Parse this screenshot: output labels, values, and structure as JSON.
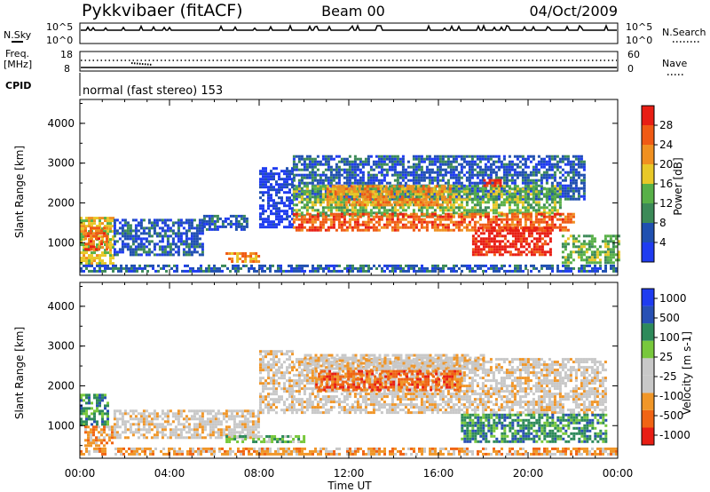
{
  "header": {
    "station": "Pykkvibaer (fitACF)",
    "beam": "Beam 00",
    "date": "04/Oct/2009"
  },
  "params": {
    "nsky_label": "N.Sky",
    "nsky_ticks": [
      "10^5",
      "10^0"
    ],
    "nsearch_label": "N.Search",
    "nsearch_ticks": [
      "10^5",
      "10^0"
    ],
    "freq_label": "Freq.",
    "freq_unit": "[MHz]",
    "freq_ticks": [
      "18",
      "8"
    ],
    "nave_label": "Nave",
    "nave_ticks": [
      "60",
      "0"
    ],
    "cpid_label": "CPID",
    "cpid_value": "normal (fast stereo) 153"
  },
  "x_axis": {
    "label": "Time UT",
    "ticks": [
      "00:00",
      "04:00",
      "08:00",
      "12:00",
      "16:00",
      "20:00",
      "00:00"
    ]
  },
  "colors": {
    "power": [
      "#1f3cf0",
      "#2050b0",
      "#3c8a58",
      "#58b048",
      "#e8c828",
      "#f09020",
      "#f05a14",
      "#e81e14"
    ],
    "velocity": [
      "#e81e14",
      "#f06414",
      "#f09628",
      "#c8c8c8",
      "#c8c8c8",
      "#78c83c",
      "#2e8a5a",
      "#2850b4",
      "#1f3cf0"
    ]
  },
  "chart_data": [
    {
      "type": "heatmap",
      "name": "power",
      "ylabel": "Slant Range [km]",
      "yticks": [
        "1000",
        "2000",
        "3000",
        "4000"
      ],
      "ylim": [
        180,
        4600
      ],
      "xlim": [
        0,
        24
      ],
      "colorbar": {
        "label": "Power [dB]",
        "ticks": [
          "4",
          "8",
          "12",
          "16",
          "20",
          "24",
          "28"
        ]
      },
      "regions": [
        {
          "t": [
            0.0,
            1.5
          ],
          "r": [
            500,
            1650
          ],
          "level": 4
        },
        {
          "t": [
            0.2,
            1.2
          ],
          "r": [
            800,
            1400
          ],
          "level": 6
        },
        {
          "t": [
            1.5,
            5.5
          ],
          "r": [
            700,
            1600
          ],
          "level": 1
        },
        {
          "t": [
            5.5,
            7.5
          ],
          "r": [
            1300,
            1700
          ],
          "level": 1
        },
        {
          "t": [
            6.5,
            8.0
          ],
          "r": [
            550,
            760
          ],
          "level": 5
        },
        {
          "t": [
            8.0,
            9.5
          ],
          "r": [
            1400,
            2900
          ],
          "level": 0
        },
        {
          "t": [
            9.5,
            22.5
          ],
          "r": [
            2100,
            3200
          ],
          "level": 1
        },
        {
          "t": [
            9.5,
            21.5
          ],
          "r": [
            1700,
            2450
          ],
          "level": 3
        },
        {
          "t": [
            11.0,
            16.5
          ],
          "r": [
            1950,
            2450
          ],
          "level": 5
        },
        {
          "t": [
            9.5,
            22.0
          ],
          "r": [
            1300,
            1750
          ],
          "level": 6
        },
        {
          "t": [
            17.5,
            21.0
          ],
          "r": [
            700,
            1400
          ],
          "level": 7
        },
        {
          "t": [
            18.0,
            18.8
          ],
          "r": [
            2400,
            2600
          ],
          "level": 7
        },
        {
          "t": [
            21.5,
            24.0
          ],
          "r": [
            500,
            1200
          ],
          "level": 3
        },
        {
          "t": [
            0.0,
            24.0
          ],
          "r": [
            250,
            450
          ],
          "level": 1
        }
      ]
    },
    {
      "type": "heatmap",
      "name": "velocity",
      "ylabel": "Slant Range [km]",
      "yticks": [
        "1000",
        "2000",
        "3000",
        "4000"
      ],
      "ylim": [
        180,
        4600
      ],
      "xlim": [
        0,
        24
      ],
      "colorbar": {
        "label": "Velocity [m s-1]",
        "ticks": [
          "1000",
          "500",
          "100",
          "25",
          "-25",
          "-100",
          "-500",
          "-1000"
        ]
      },
      "regions": [
        {
          "t": [
            0.0,
            1.3
          ],
          "r": [
            1000,
            1800
          ],
          "level": 6
        },
        {
          "t": [
            0.2,
            1.5
          ],
          "r": [
            500,
            1000
          ],
          "level": 2
        },
        {
          "t": [
            1.5,
            8.0
          ],
          "r": [
            700,
            1400
          ],
          "level": 3
        },
        {
          "t": [
            8.0,
            9.5
          ],
          "r": [
            1300,
            2900
          ],
          "level": 3
        },
        {
          "t": [
            9.5,
            23.5
          ],
          "r": [
            1300,
            2700
          ],
          "level": 3
        },
        {
          "t": [
            10.5,
            17.0
          ],
          "r": [
            1900,
            2400
          ],
          "level": 1
        },
        {
          "t": [
            10.0,
            18.0
          ],
          "r": [
            2400,
            2800
          ],
          "level": 3
        },
        {
          "t": [
            17.0,
            23.5
          ],
          "r": [
            600,
            1300
          ],
          "level": 6
        },
        {
          "t": [
            6.5,
            10.0
          ],
          "r": [
            600,
            760
          ],
          "level": 5
        },
        {
          "t": [
            0.0,
            24.0
          ],
          "r": [
            250,
            450
          ],
          "level": 2
        }
      ]
    }
  ]
}
